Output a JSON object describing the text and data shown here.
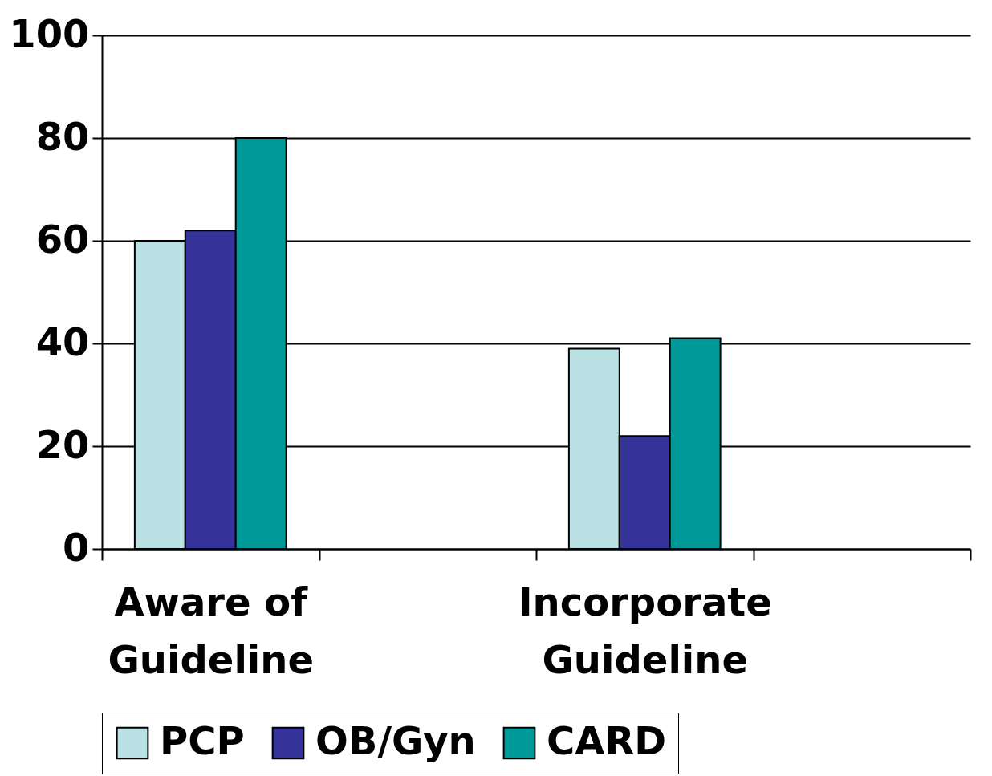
{
  "chart_data": {
    "type": "bar",
    "categories": [
      "Aware of Guideline",
      null,
      "Incorporate Guideline",
      null
    ],
    "series": [
      {
        "name": "PCP",
        "color": "#b9e0e2",
        "values": [
          60,
          null,
          39,
          null
        ]
      },
      {
        "name": "OB/Gyn",
        "color": "#353399",
        "values": [
          62,
          null,
          22,
          null
        ]
      },
      {
        "name": "CARD",
        "color": "#009999",
        "values": [
          80,
          null,
          41,
          null
        ]
      }
    ],
    "ylim": [
      0,
      100
    ],
    "yticks": [
      0,
      20,
      40,
      60,
      80,
      100
    ],
    "grid": "y",
    "legend": "bottom"
  }
}
